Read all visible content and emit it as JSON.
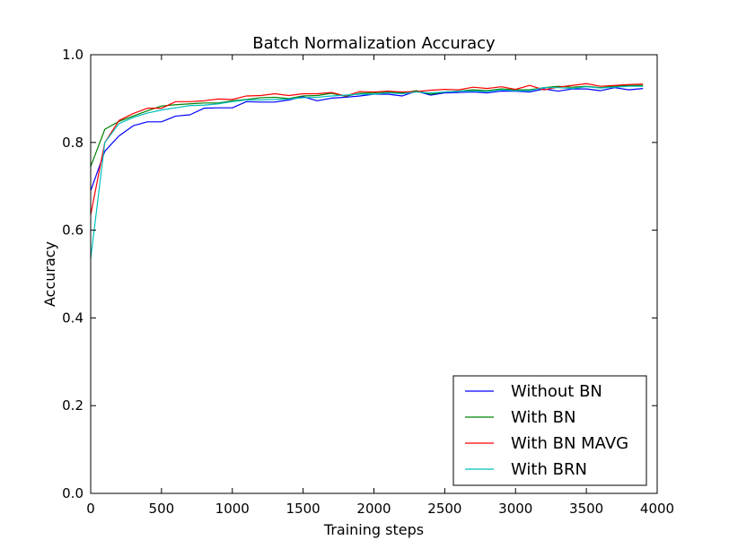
{
  "chart_data": {
    "type": "line",
    "title": "Batch Normalization Accuracy",
    "xlabel": "Training steps",
    "ylabel": "Accuracy",
    "xlim": [
      0,
      4000
    ],
    "ylim": [
      0.0,
      1.0
    ],
    "xticks": [
      0,
      500,
      1000,
      1500,
      2000,
      2500,
      3000,
      3500,
      4000
    ],
    "yticks": [
      0.0,
      0.2,
      0.4,
      0.6,
      0.8,
      1.0
    ],
    "xtick_labels": [
      "0",
      "500",
      "1000",
      "1500",
      "2000",
      "2500",
      "3000",
      "3500",
      "4000"
    ],
    "ytick_labels": [
      "0.0",
      "0.2",
      "0.4",
      "0.6",
      "0.8",
      "1.0"
    ],
    "grid": false,
    "legend_position": "lower-right",
    "x": [
      0,
      100,
      200,
      300,
      400,
      500,
      600,
      700,
      800,
      900,
      1000,
      1100,
      1200,
      1300,
      1400,
      1500,
      1600,
      1700,
      1800,
      1900,
      2000,
      2100,
      2200,
      2300,
      2400,
      2500,
      2600,
      2700,
      2800,
      2900,
      3000,
      3100,
      3200,
      3300,
      3400,
      3500,
      3600,
      3700,
      3800,
      3900
    ],
    "series": [
      {
        "name": "Without BN",
        "color": "#0000ff",
        "values": [
          0.69,
          0.78,
          0.815,
          0.838,
          0.847,
          0.847,
          0.86,
          0.863,
          0.878,
          0.879,
          0.879,
          0.893,
          0.892,
          0.892,
          0.897,
          0.904,
          0.895,
          0.901,
          0.903,
          0.906,
          0.91,
          0.91,
          0.906,
          0.917,
          0.908,
          0.913,
          0.914,
          0.915,
          0.913,
          0.917,
          0.917,
          0.915,
          0.922,
          0.917,
          0.922,
          0.922,
          0.918,
          0.925,
          0.92,
          0.923
        ]
      },
      {
        "name": "With BN",
        "color": "#008000",
        "values": [
          0.745,
          0.83,
          0.848,
          0.86,
          0.872,
          0.883,
          0.886,
          0.888,
          0.89,
          0.89,
          0.895,
          0.898,
          0.902,
          0.903,
          0.9,
          0.906,
          0.907,
          0.912,
          0.905,
          0.912,
          0.913,
          0.915,
          0.913,
          0.918,
          0.91,
          0.915,
          0.917,
          0.92,
          0.918,
          0.922,
          0.92,
          0.92,
          0.925,
          0.928,
          0.926,
          0.928,
          0.925,
          0.928,
          0.93,
          0.93
        ]
      },
      {
        "name": "With BN MAVG",
        "color": "#ff0000",
        "values": [
          0.635,
          0.8,
          0.85,
          0.866,
          0.878,
          0.878,
          0.893,
          0.893,
          0.895,
          0.899,
          0.898,
          0.906,
          0.907,
          0.911,
          0.907,
          0.911,
          0.911,
          0.914,
          0.906,
          0.916,
          0.915,
          0.917,
          0.915,
          0.916,
          0.919,
          0.921,
          0.92,
          0.926,
          0.923,
          0.927,
          0.921,
          0.93,
          0.92,
          0.926,
          0.93,
          0.934,
          0.928,
          0.93,
          0.932,
          0.933
        ]
      },
      {
        "name": "With BRN",
        "color": "#00bfbf",
        "values": [
          0.535,
          0.8,
          0.843,
          0.857,
          0.867,
          0.874,
          0.879,
          0.884,
          0.885,
          0.888,
          0.893,
          0.897,
          0.897,
          0.898,
          0.899,
          0.902,
          0.903,
          0.906,
          0.908,
          0.91,
          0.91,
          0.913,
          0.911,
          0.915,
          0.913,
          0.915,
          0.917,
          0.917,
          0.916,
          0.92,
          0.918,
          0.918,
          0.925,
          0.925,
          0.923,
          0.927,
          0.924,
          0.926,
          0.928,
          0.928
        ]
      }
    ]
  }
}
